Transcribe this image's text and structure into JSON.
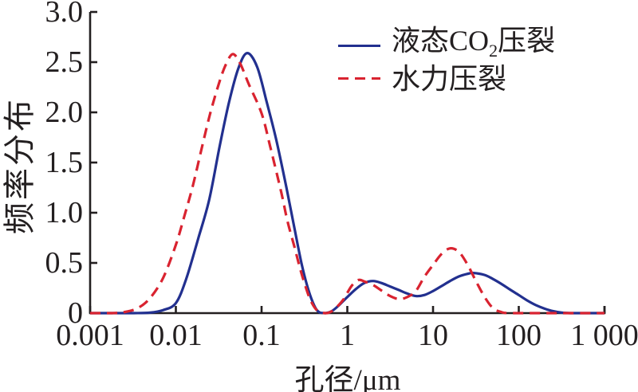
{
  "figure": {
    "background": "#ffffff",
    "axis_color": "#231f20",
    "text_color": "#231f20"
  },
  "legend": {
    "items": [
      {
        "label_pre": "液态CO",
        "label_sub": "2",
        "label_post": "压裂",
        "color": "#22308f",
        "style": "solid"
      },
      {
        "label": "水力压裂",
        "color": "#d92330",
        "style": "dashed"
      }
    ]
  },
  "chart_data": {
    "type": "line",
    "title": "",
    "xlabel": "孔径/μm",
    "ylabel": "频率分布",
    "x_scale": "log",
    "xlim": [
      0.001,
      1000
    ],
    "ylim": [
      0,
      3.0
    ],
    "grid": false,
    "legend_position": "upper right",
    "x_ticks": [
      0.001,
      0.01,
      0.1,
      1,
      10,
      100,
      1000
    ],
    "x_tick_labels": [
      "0.001",
      "0.01",
      "0.1",
      "1",
      "10",
      "100",
      "1 000"
    ],
    "y_ticks": [
      0,
      0.5,
      1.0,
      1.5,
      2.0,
      2.5,
      3.0
    ],
    "y_tick_labels": [
      "0",
      "0.5",
      "1.0",
      "1.5",
      "2.0",
      "2.5",
      "3.0"
    ],
    "series": [
      {
        "name": "液态CO2压裂",
        "color": "#22308f",
        "line_style": "solid",
        "points": [
          [
            0.001,
            0
          ],
          [
            0.0032,
            0
          ],
          [
            0.005,
            0.005
          ],
          [
            0.0071,
            0.03
          ],
          [
            0.01,
            0.1
          ],
          [
            0.0132,
            0.34
          ],
          [
            0.0182,
            0.74
          ],
          [
            0.0245,
            1.13
          ],
          [
            0.0324,
            1.66
          ],
          [
            0.0417,
            2.1
          ],
          [
            0.0537,
            2.44
          ],
          [
            0.068,
            2.59
          ],
          [
            0.089,
            2.45
          ],
          [
            0.115,
            2.1
          ],
          [
            0.148,
            1.73
          ],
          [
            0.195,
            1.25
          ],
          [
            0.24,
            0.86
          ],
          [
            0.295,
            0.48
          ],
          [
            0.355,
            0.22
          ],
          [
            0.42,
            0.06
          ],
          [
            0.48,
            0.005
          ],
          [
            0.56,
            0
          ],
          [
            0.66,
            0.02
          ],
          [
            0.78,
            0.07
          ],
          [
            1,
            0.16
          ],
          [
            1.26,
            0.24
          ],
          [
            1.58,
            0.3
          ],
          [
            2,
            0.32
          ],
          [
            2.5,
            0.3
          ],
          [
            3.16,
            0.265
          ],
          [
            4,
            0.23
          ],
          [
            5,
            0.195
          ],
          [
            6.3,
            0.17
          ],
          [
            7.9,
            0.18
          ],
          [
            10,
            0.22
          ],
          [
            12.6,
            0.27
          ],
          [
            15.8,
            0.32
          ],
          [
            20,
            0.365
          ],
          [
            25,
            0.39
          ],
          [
            29.5,
            0.4
          ],
          [
            40,
            0.38
          ],
          [
            50,
            0.34
          ],
          [
            63,
            0.29
          ],
          [
            79,
            0.235
          ],
          [
            100,
            0.18
          ],
          [
            126,
            0.125
          ],
          [
            158,
            0.08
          ],
          [
            200,
            0.045
          ],
          [
            250,
            0.02
          ],
          [
            316,
            0.005
          ],
          [
            400,
            0
          ],
          [
            560,
            0
          ],
          [
            1000,
            0
          ]
        ]
      },
      {
        "name": "水力压裂",
        "color": "#d92330",
        "line_style": "dashed",
        "points": [
          [
            0.001,
            0
          ],
          [
            0.0018,
            0
          ],
          [
            0.0025,
            0.01
          ],
          [
            0.0036,
            0.05
          ],
          [
            0.005,
            0.15
          ],
          [
            0.0071,
            0.35
          ],
          [
            0.01,
            0.68
          ],
          [
            0.0126,
            0.97
          ],
          [
            0.0158,
            1.27
          ],
          [
            0.02,
            1.64
          ],
          [
            0.025,
            1.98
          ],
          [
            0.0316,
            2.28
          ],
          [
            0.038,
            2.47
          ],
          [
            0.046,
            2.58
          ],
          [
            0.056,
            2.49
          ],
          [
            0.071,
            2.28
          ],
          [
            0.1,
            1.99
          ],
          [
            0.126,
            1.66
          ],
          [
            0.17,
            1.2
          ],
          [
            0.2,
            0.92
          ],
          [
            0.24,
            0.67
          ],
          [
            0.28,
            0.45
          ],
          [
            0.316,
            0.3
          ],
          [
            0.363,
            0.15
          ],
          [
            0.42,
            0.05
          ],
          [
            0.48,
            0.01
          ],
          [
            0.56,
            0
          ],
          [
            0.63,
            0.01
          ],
          [
            0.71,
            0.04
          ],
          [
            0.89,
            0.13
          ],
          [
            1.12,
            0.27
          ],
          [
            1.35,
            0.33
          ],
          [
            1.58,
            0.315
          ],
          [
            2,
            0.28
          ],
          [
            2.5,
            0.225
          ],
          [
            3.16,
            0.17
          ],
          [
            4,
            0.14
          ],
          [
            5,
            0.16
          ],
          [
            6.3,
            0.22
          ],
          [
            7.9,
            0.36
          ],
          [
            10,
            0.48
          ],
          [
            12.6,
            0.59
          ],
          [
            15.8,
            0.645
          ],
          [
            20,
            0.61
          ],
          [
            25,
            0.49
          ],
          [
            31.6,
            0.32
          ],
          [
            40,
            0.16
          ],
          [
            50,
            0.05
          ],
          [
            63,
            0.01
          ],
          [
            79,
            0
          ],
          [
            200,
            0
          ],
          [
            1000,
            0
          ]
        ]
      }
    ]
  }
}
